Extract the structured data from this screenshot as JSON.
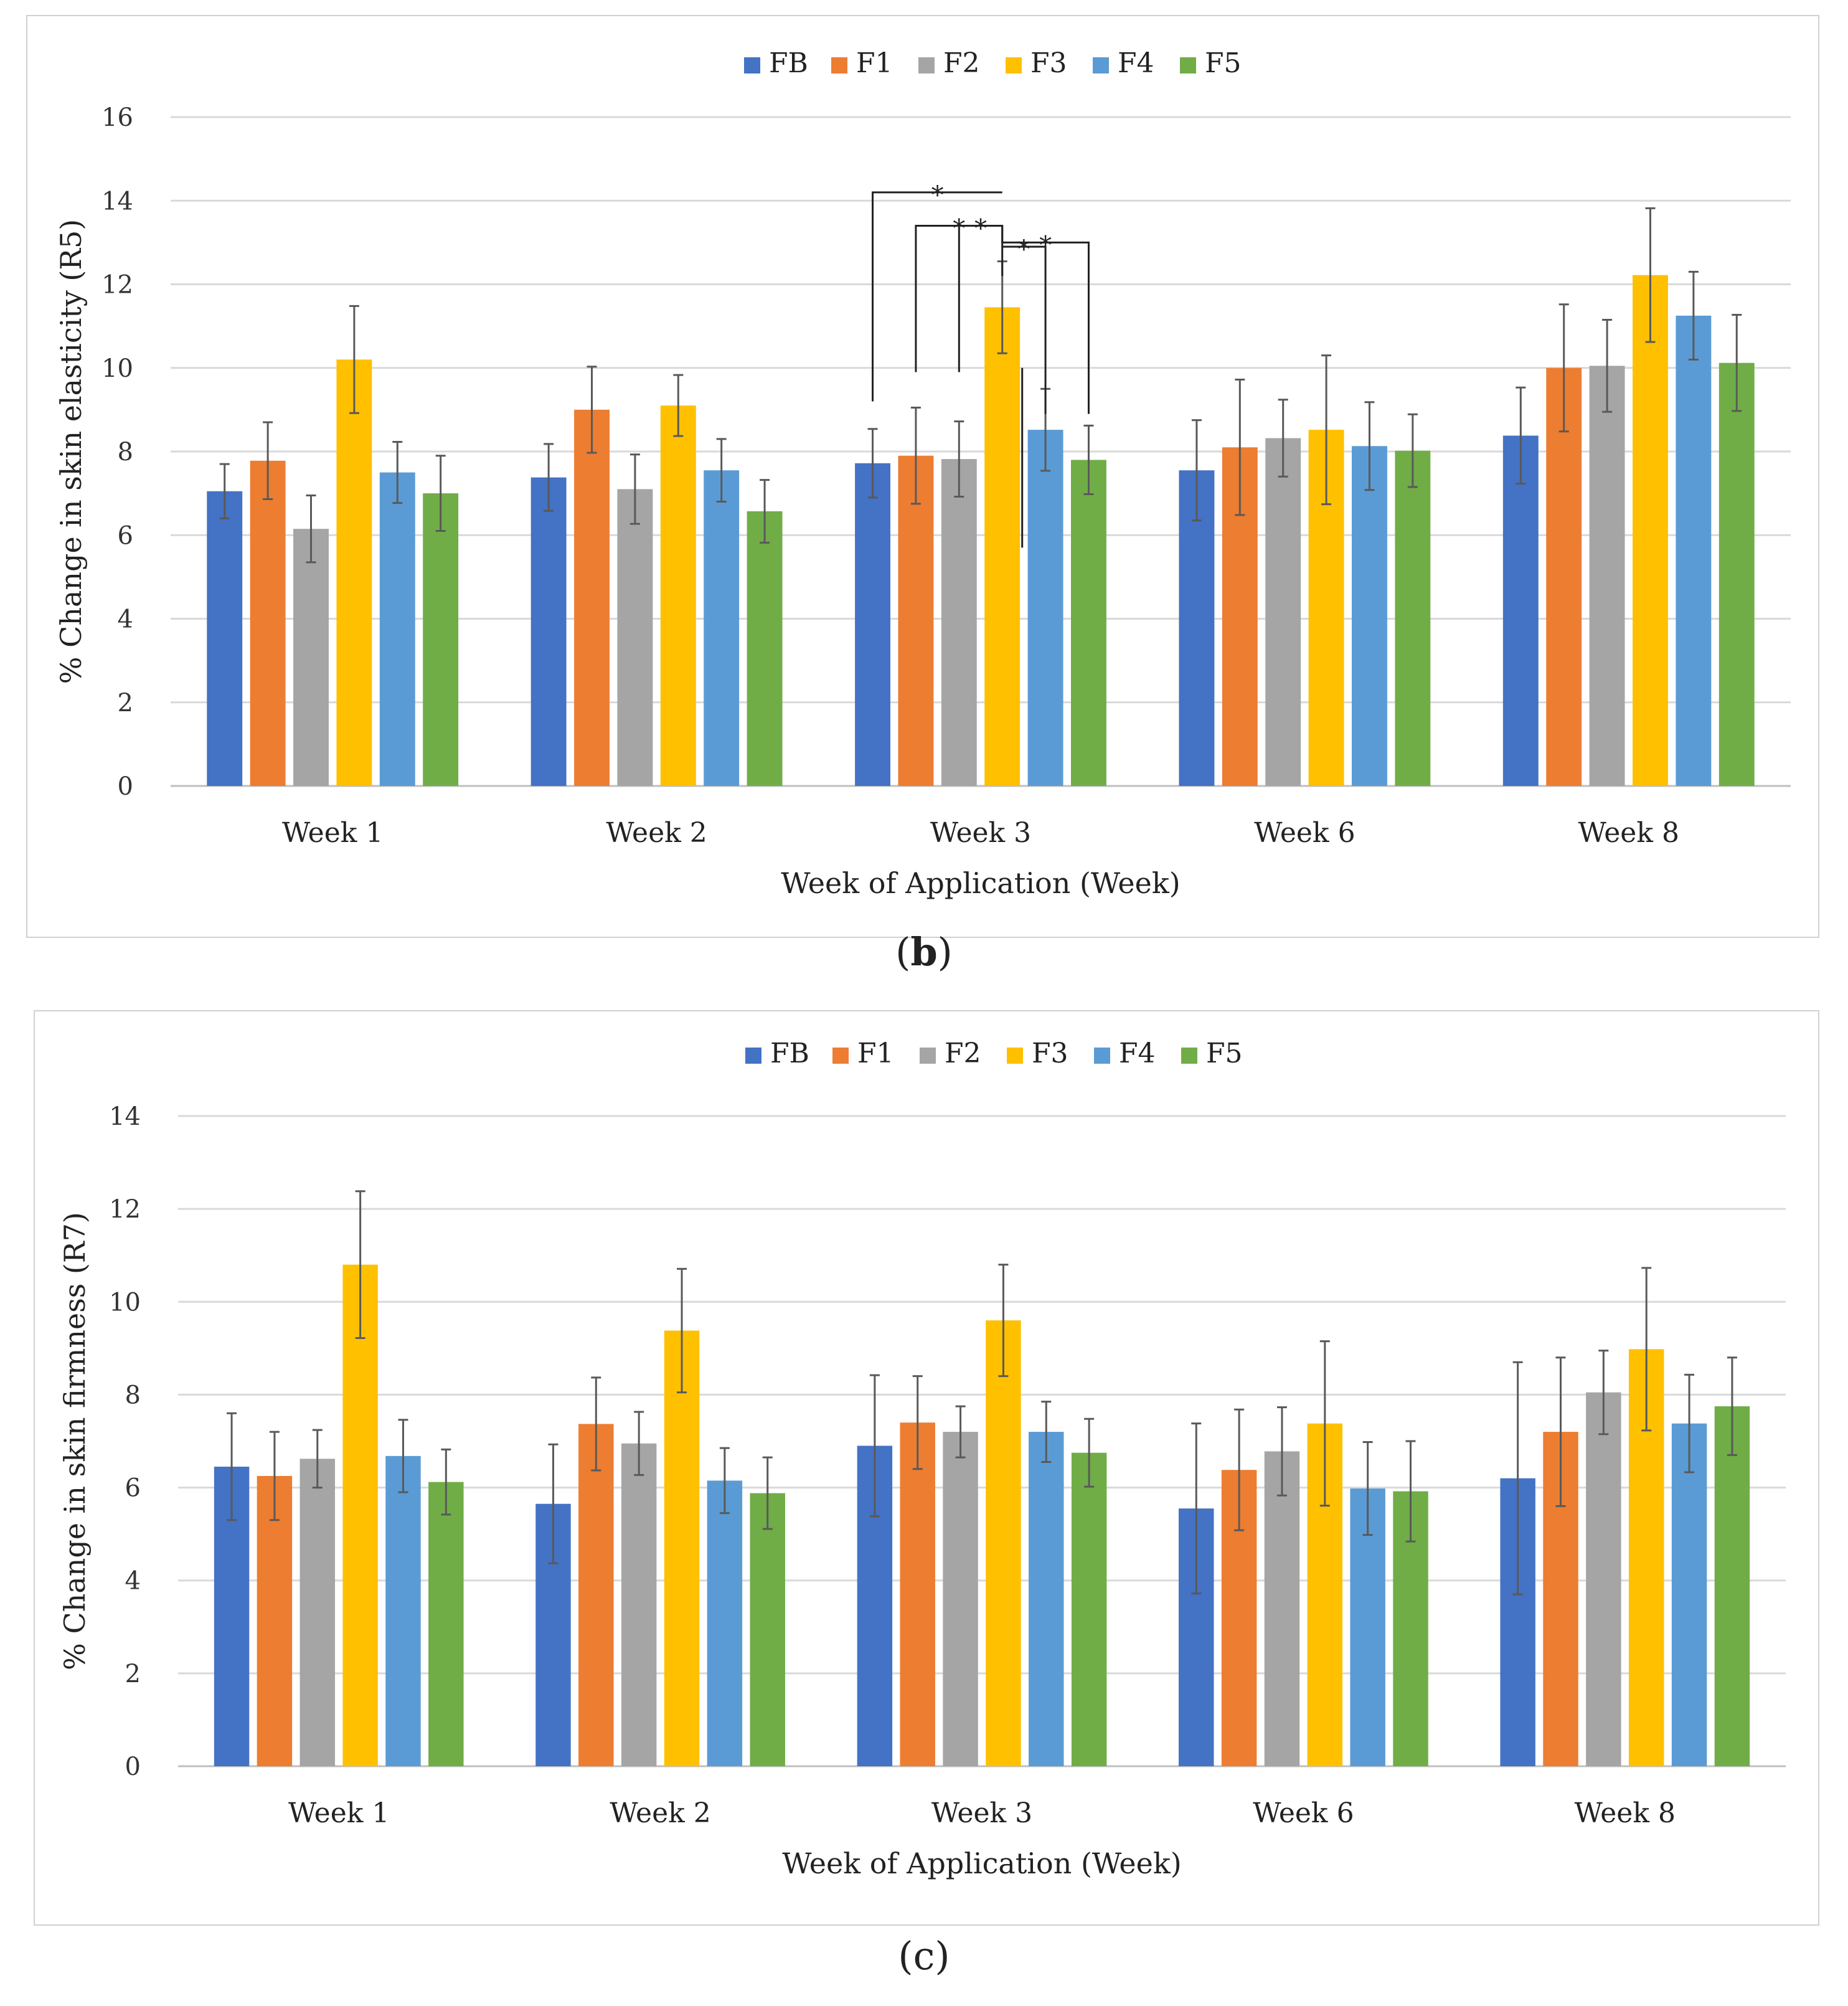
{
  "chart_data": [
    {
      "type": "bar",
      "panel_label": "b",
      "title": "",
      "xlabel": "Week of Application  (Week)",
      "ylabel": "% Change in skin elasticity (R5)",
      "ylim": [
        0,
        16
      ],
      "yticks": [
        "0",
        "2",
        "4",
        "6",
        "8",
        "10",
        "12",
        "14",
        "16"
      ],
      "grid": true,
      "legend_position": "top-center",
      "categories": [
        "Week 1",
        "Week 2",
        "Week 3",
        "Week 6",
        "Week 8"
      ],
      "series": [
        {
          "name": "FB",
          "color": "#4472C4",
          "values": [
            7.05,
            7.38,
            7.72,
            7.55,
            8.38
          ],
          "errors": [
            0.65,
            0.8,
            0.82,
            1.2,
            1.15
          ]
        },
        {
          "name": "F1",
          "color": "#ED7D31",
          "values": [
            7.78,
            9.0,
            7.9,
            8.1,
            10.0
          ],
          "errors": [
            0.92,
            1.03,
            1.15,
            1.62,
            1.52
          ]
        },
        {
          "name": "F2",
          "color": "#A5A5A5",
          "values": [
            6.15,
            7.1,
            7.82,
            8.32,
            10.05
          ],
          "errors": [
            0.8,
            0.83,
            0.9,
            0.92,
            1.1
          ]
        },
        {
          "name": "F3",
          "color": "#FFC000",
          "values": [
            10.2,
            9.1,
            11.45,
            8.52,
            12.22
          ],
          "errors": [
            1.28,
            0.73,
            1.1,
            1.78,
            1.6
          ]
        },
        {
          "name": "F4",
          "color": "#5B9BD5",
          "values": [
            7.5,
            7.55,
            8.52,
            8.13,
            11.25
          ],
          "errors": [
            0.73,
            0.75,
            0.98,
            1.05,
            1.05
          ]
        },
        {
          "name": "F5",
          "color": "#70AD47",
          "values": [
            7.0,
            6.57,
            7.8,
            8.02,
            10.12
          ],
          "errors": [
            0.9,
            0.75,
            0.82,
            0.87,
            1.15
          ]
        }
      ],
      "significance": {
        "category": "Week 3",
        "reference": "F3",
        "marker": "*",
        "comparisons": [
          "FB",
          "F1",
          "F2",
          "F4",
          "F5"
        ]
      }
    },
    {
      "type": "bar",
      "panel_label": "c",
      "title": "",
      "xlabel": "Week of Application  (Week)",
      "ylabel": "% Change in skin firmness (R7)",
      "ylim": [
        0,
        14
      ],
      "yticks": [
        "0",
        "2",
        "4",
        "6",
        "8",
        "10",
        "12",
        "14"
      ],
      "grid": true,
      "legend_position": "top-center",
      "categories": [
        "Week 1",
        "Week 2",
        "Week 3",
        "Week 6",
        "Week 8"
      ],
      "series": [
        {
          "name": "FB",
          "color": "#4472C4",
          "values": [
            6.45,
            5.65,
            6.9,
            5.55,
            6.2
          ],
          "errors": [
            1.15,
            1.28,
            1.52,
            1.83,
            2.5
          ]
        },
        {
          "name": "F1",
          "color": "#ED7D31",
          "values": [
            6.25,
            7.37,
            7.4,
            6.38,
            7.2
          ],
          "errors": [
            0.95,
            1.0,
            1.0,
            1.3,
            1.6
          ]
        },
        {
          "name": "F2",
          "color": "#A5A5A5",
          "values": [
            6.62,
            6.95,
            7.2,
            6.78,
            8.05
          ],
          "errors": [
            0.62,
            0.68,
            0.55,
            0.95,
            0.9
          ]
        },
        {
          "name": "F3",
          "color": "#FFC000",
          "values": [
            10.8,
            9.38,
            9.6,
            7.38,
            8.98
          ],
          "errors": [
            1.58,
            1.33,
            1.2,
            1.77,
            1.75
          ]
        },
        {
          "name": "F4",
          "color": "#5B9BD5",
          "values": [
            6.68,
            6.15,
            7.2,
            5.98,
            7.38
          ],
          "errors": [
            0.78,
            0.7,
            0.65,
            1.0,
            1.05
          ]
        },
        {
          "name": "F5",
          "color": "#70AD47",
          "values": [
            6.12,
            5.88,
            6.75,
            5.92,
            7.75
          ],
          "errors": [
            0.7,
            0.77,
            0.73,
            1.08,
            1.05
          ]
        }
      ]
    }
  ]
}
